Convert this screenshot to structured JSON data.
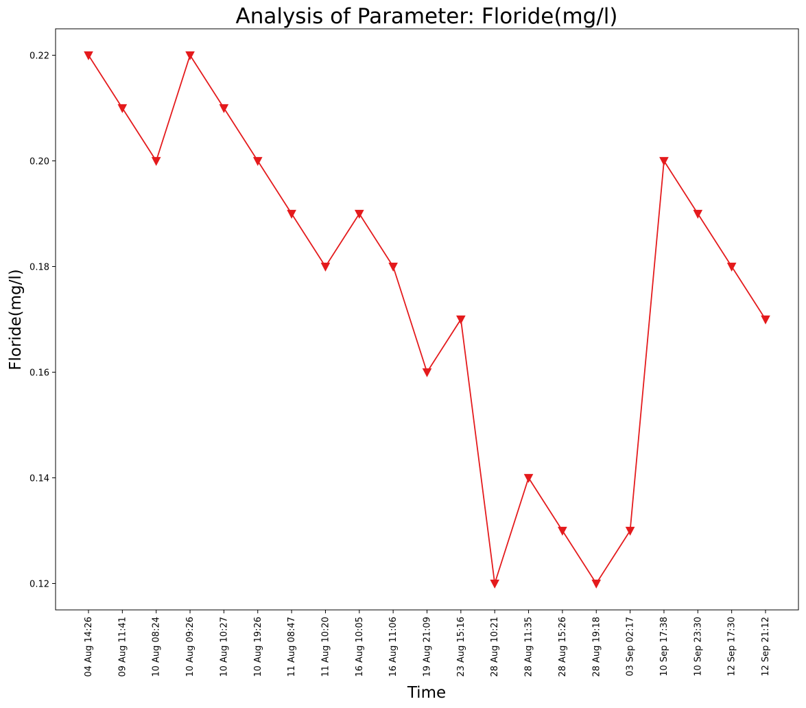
{
  "chart_data": {
    "type": "line",
    "title": "Analysis of Parameter: Floride(mg/l)",
    "xlabel": "Time",
    "ylabel": "Floride(mg/l)",
    "categories": [
      "04 Aug 14:26",
      "09 Aug 11:41",
      "10 Aug 08:24",
      "10 Aug 09:26",
      "10 Aug 10:27",
      "10 Aug 19:26",
      "11 Aug 08:47",
      "11 Aug 10:20",
      "16 Aug 10:05",
      "16 Aug 11:06",
      "19 Aug 21:09",
      "23 Aug 15:16",
      "28 Aug 10:21",
      "28 Aug 11:35",
      "28 Aug 15:26",
      "28 Aug 19:18",
      "03 Sep 02:17",
      "10 Sep 17:38",
      "10 Sep 23:30",
      "12 Sep 17:30",
      "12 Sep 21:12"
    ],
    "series": [
      {
        "values": [
          0.22,
          0.21,
          0.2,
          0.22,
          0.21,
          0.2,
          0.19,
          0.18,
          0.19,
          0.18,
          0.16,
          0.17,
          0.12,
          0.14,
          0.13,
          0.12,
          0.13,
          0.2,
          0.19,
          0.18,
          0.17
        ],
        "color": "#e41a1c",
        "marker": "triangle-down"
      }
    ],
    "yticks": [
      "0.12",
      "0.14",
      "0.16",
      "0.18",
      "0.20",
      "0.22"
    ],
    "ylim": [
      0.115,
      0.225
    ],
    "grid": false,
    "legend": "none"
  }
}
